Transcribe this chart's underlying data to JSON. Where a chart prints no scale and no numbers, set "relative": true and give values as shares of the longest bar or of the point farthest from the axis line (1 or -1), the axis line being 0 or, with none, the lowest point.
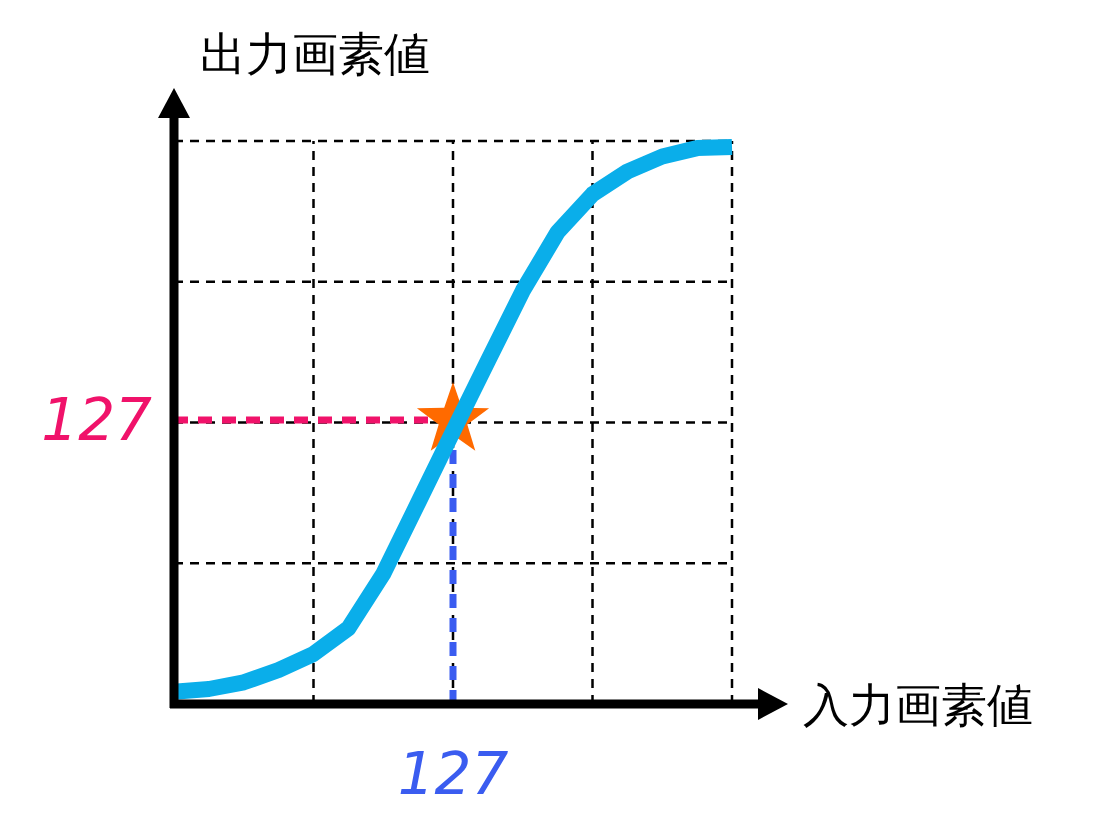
{
  "chart_data": {
    "type": "line",
    "xlabel": "入力画素値",
    "ylabel": "出力画素値",
    "relative": true,
    "grid": true,
    "categories": [
      null,
      null,
      null,
      null,
      null,
      null,
      null,
      null,
      null,
      null,
      null,
      null,
      null,
      null,
      null,
      null,
      null
    ],
    "series": [
      {
        "color": "#0aaeea",
        "values": [
          0.022,
          0.027,
          0.039,
          0.061,
          0.09,
          0.136,
          0.234,
          0.361,
          0.489,
          0.616,
          0.742,
          0.847,
          0.915,
          0.956,
          0.983,
          0.998,
          1.0
        ]
      }
    ],
    "ref_lines": [
      {
        "axis": "y",
        "value": 0.51,
        "color": "#f0126a",
        "line_style": "dashed"
      }
    ],
    "annotations": [
      "127",
      "127"
    ]
  }
}
